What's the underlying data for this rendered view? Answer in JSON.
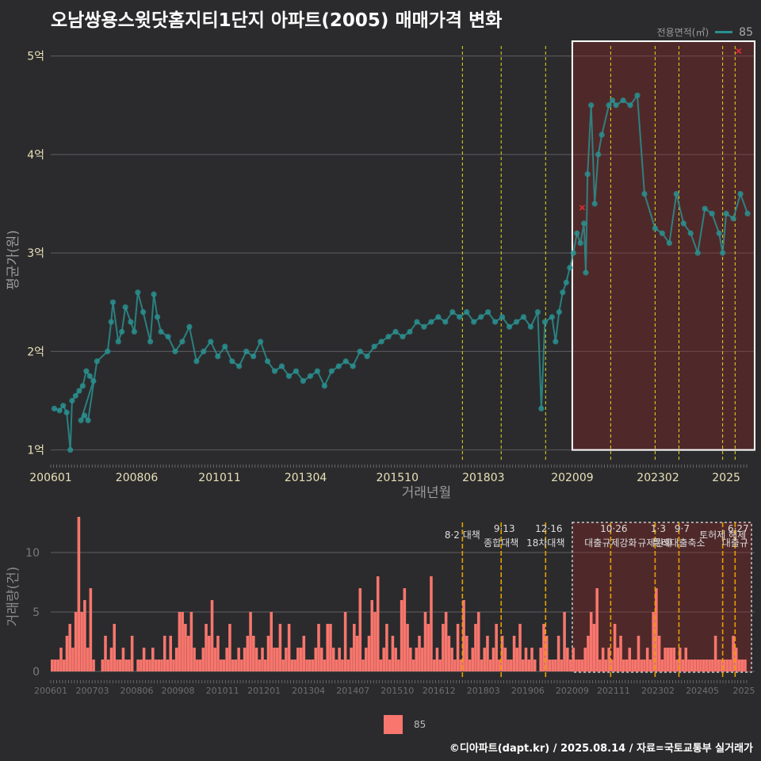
{
  "title": "오남쌍용스윗닷홈지티1단지 아파트(2005) 매매가격 변화",
  "legend_top": {
    "title": "전용면적(㎡)",
    "label": "85",
    "color": "#2a8f8f"
  },
  "legend_bottom": {
    "label": "85",
    "color": "#f8766d"
  },
  "credit": "©디아파트(dapt.kr) / 2025.08.14 / 자료=국토교통부 실거래가",
  "chart_data": [
    {
      "type": "scatter",
      "name": "price",
      "ylabel": "평균가(원)",
      "xlabel": "거래년월",
      "ylim": [
        0.9,
        5.15
      ],
      "xlim": [
        2006.0,
        2025.8
      ],
      "yticks": [
        1,
        2,
        3,
        4,
        5
      ],
      "ytick_labels": [
        "1억",
        "2억",
        "3억",
        "4억",
        "5억"
      ],
      "xticks": [
        2006.0,
        2008.42,
        2010.75,
        2013.17,
        2015.75,
        2018.17,
        2020.67,
        2023.08,
        2025.0
      ],
      "xtick_labels": [
        "200601",
        "200806",
        "201011",
        "201304",
        "201510",
        "201803",
        "202009",
        "202302",
        "2025"
      ],
      "vlines": [
        2017.58,
        2018.67,
        2019.92,
        2021.75,
        2023.0,
        2023.67,
        2024.9,
        2025.25
      ],
      "highlight": {
        "x0": 2020.67,
        "x1": 2025.8,
        "y0": 1.0,
        "y1": 5.15
      },
      "series": [
        {
          "color": "#2a8f8f",
          "points": [
            [
              2006.1,
              1.42
            ],
            [
              2006.25,
              1.4
            ],
            [
              2006.35,
              1.45
            ],
            [
              2006.45,
              1.38
            ],
            [
              2006.55,
              1.0
            ],
            [
              2006.6,
              1.5
            ],
            [
              2006.7,
              1.55
            ],
            [
              2006.8,
              1.6
            ],
            [
              2006.9,
              1.65
            ],
            [
              2007.0,
              1.8
            ],
            [
              2007.1,
              1.75
            ],
            [
              2007.2,
              1.7
            ],
            [
              2006.85,
              1.3
            ],
            [
              2006.95,
              1.35
            ],
            [
              2007.05,
              1.3
            ],
            [
              2007.3,
              1.9
            ],
            [
              2007.6,
              2.0
            ],
            [
              2007.7,
              2.3
            ],
            [
              2007.75,
              2.5
            ],
            [
              2007.9,
              2.1
            ],
            [
              2008.0,
              2.2
            ],
            [
              2008.1,
              2.45
            ],
            [
              2008.25,
              2.3
            ],
            [
              2008.35,
              2.2
            ],
            [
              2008.45,
              2.6
            ],
            [
              2008.6,
              2.4
            ],
            [
              2008.8,
              2.1
            ],
            [
              2008.9,
              2.58
            ],
            [
              2009.0,
              2.35
            ],
            [
              2009.1,
              2.2
            ],
            [
              2009.3,
              2.15
            ],
            [
              2009.5,
              2.0
            ],
            [
              2009.7,
              2.1
            ],
            [
              2009.9,
              2.25
            ],
            [
              2010.1,
              1.9
            ],
            [
              2010.3,
              2.0
            ],
            [
              2010.5,
              2.1
            ],
            [
              2010.7,
              1.95
            ],
            [
              2010.9,
              2.05
            ],
            [
              2011.1,
              1.9
            ],
            [
              2011.3,
              1.85
            ],
            [
              2011.5,
              2.0
            ],
            [
              2011.7,
              1.95
            ],
            [
              2011.9,
              2.1
            ],
            [
              2012.1,
              1.9
            ],
            [
              2012.3,
              1.8
            ],
            [
              2012.5,
              1.85
            ],
            [
              2012.7,
              1.75
            ],
            [
              2012.9,
              1.8
            ],
            [
              2013.1,
              1.7
            ],
            [
              2013.3,
              1.75
            ],
            [
              2013.5,
              1.8
            ],
            [
              2013.7,
              1.65
            ],
            [
              2013.9,
              1.8
            ],
            [
              2014.1,
              1.85
            ],
            [
              2014.3,
              1.9
            ],
            [
              2014.5,
              1.85
            ],
            [
              2014.7,
              2.0
            ],
            [
              2014.9,
              1.95
            ],
            [
              2015.1,
              2.05
            ],
            [
              2015.3,
              2.1
            ],
            [
              2015.5,
              2.15
            ],
            [
              2015.7,
              2.2
            ],
            [
              2015.9,
              2.15
            ],
            [
              2016.1,
              2.2
            ],
            [
              2016.3,
              2.3
            ],
            [
              2016.5,
              2.25
            ],
            [
              2016.7,
              2.3
            ],
            [
              2016.9,
              2.35
            ],
            [
              2017.1,
              2.3
            ],
            [
              2017.3,
              2.4
            ],
            [
              2017.5,
              2.35
            ],
            [
              2017.7,
              2.4
            ],
            [
              2017.9,
              2.3
            ],
            [
              2018.1,
              2.35
            ],
            [
              2018.3,
              2.4
            ],
            [
              2018.5,
              2.3
            ],
            [
              2018.7,
              2.35
            ],
            [
              2018.9,
              2.25
            ],
            [
              2019.1,
              2.3
            ],
            [
              2019.3,
              2.35
            ],
            [
              2019.5,
              2.25
            ],
            [
              2019.7,
              2.4
            ],
            [
              2019.8,
              1.42
            ],
            [
              2019.9,
              2.3
            ],
            [
              2020.1,
              2.35
            ],
            [
              2020.2,
              2.1
            ],
            [
              2020.3,
              2.4
            ],
            [
              2020.4,
              2.6
            ],
            [
              2020.5,
              2.7
            ],
            [
              2020.6,
              2.85
            ],
            [
              2020.7,
              3.0
            ],
            [
              2020.8,
              3.2
            ],
            [
              2020.9,
              3.1
            ],
            [
              2021.0,
              3.3
            ],
            [
              2021.05,
              2.8
            ],
            [
              2021.1,
              3.8
            ],
            [
              2021.2,
              4.5
            ],
            [
              2021.3,
              3.5
            ],
            [
              2021.4,
              4.0
            ],
            [
              2021.5,
              4.2
            ],
            [
              2021.7,
              4.5
            ],
            [
              2021.8,
              4.55
            ],
            [
              2021.9,
              4.5
            ],
            [
              2022.1,
              4.55
            ],
            [
              2022.3,
              4.5
            ],
            [
              2022.5,
              4.6
            ],
            [
              2022.7,
              3.6
            ],
            [
              2023.0,
              3.25
            ],
            [
              2023.2,
              3.2
            ],
            [
              2023.4,
              3.1
            ],
            [
              2023.6,
              3.6
            ],
            [
              2023.8,
              3.3
            ],
            [
              2024.0,
              3.2
            ],
            [
              2024.2,
              3.0
            ],
            [
              2024.4,
              3.45
            ],
            [
              2024.6,
              3.4
            ],
            [
              2024.8,
              3.2
            ],
            [
              2024.9,
              3.0
            ],
            [
              2025.0,
              3.4
            ],
            [
              2025.2,
              3.35
            ],
            [
              2025.4,
              3.6
            ],
            [
              2025.6,
              3.4
            ]
          ]
        }
      ],
      "markers": [
        {
          "x": 2020.95,
          "y": 3.46,
          "symbol": "x",
          "color": "#e03030"
        },
        {
          "x": 2025.35,
          "y": 5.05,
          "symbol": "x",
          "color": "#e03030"
        }
      ]
    },
    {
      "type": "bar",
      "name": "volume",
      "ylabel": "거래량(건)",
      "ylim": [
        0,
        13
      ],
      "yticks": [
        0,
        5,
        10
      ],
      "ytick_labels": [
        "0",
        "5",
        "10"
      ],
      "xtick_labels": [
        "200601",
        "200703",
        "200806",
        "200908",
        "201011",
        "201201",
        "201304",
        "201407",
        "201510",
        "201612",
        "201803",
        "201906",
        "202009",
        "202111",
        "202302",
        "202405",
        "2025"
      ],
      "xtick_positions": [
        2006.0,
        2007.17,
        2008.42,
        2009.58,
        2010.83,
        2012.0,
        2013.25,
        2014.5,
        2015.75,
        2016.92,
        2018.17,
        2019.42,
        2020.67,
        2021.83,
        2023.08,
        2024.33,
        2025.5
      ],
      "vlines": [
        2017.58,
        2018.67,
        2019.92,
        2021.75,
        2023.0,
        2023.67,
        2024.9,
        2025.25
      ],
      "highlight": {
        "x0": 2020.67,
        "x1": 2025.8,
        "y0": 0,
        "y1": 13
      },
      "annotations": [
        {
          "x": 2017.58,
          "lines": [
            "8·2 대책"
          ]
        },
        {
          "x": 2018.67,
          "lines": [
            "9·13",
            "종합대책"
          ]
        },
        {
          "x": 2019.92,
          "lines": [
            "12·16",
            "18차대책"
          ]
        },
        {
          "x": 2021.75,
          "lines": [
            "10·26",
            "대출규제강화"
          ]
        },
        {
          "x": 2023.0,
          "lines": [
            "1·3",
            "규제완화"
          ]
        },
        {
          "x": 2023.67,
          "lines": [
            "9·7",
            "특례대출축소"
          ]
        },
        {
          "x": 2024.9,
          "lines": [
            "토허제 해제"
          ]
        },
        {
          "x": 2025.25,
          "lines": [
            "6·27",
            "대출규"
          ]
        }
      ],
      "color": "#f8766d",
      "start": 2006.0,
      "step": 0.0833,
      "values": [
        1,
        1,
        1,
        2,
        1,
        3,
        4,
        2,
        5,
        13,
        5,
        6,
        2,
        7,
        1,
        0,
        0,
        1,
        3,
        1,
        2,
        4,
        1,
        1,
        2,
        1,
        1,
        3,
        0,
        1,
        1,
        2,
        1,
        1,
        2,
        1,
        1,
        1,
        3,
        1,
        3,
        1,
        2,
        5,
        5,
        4,
        3,
        5,
        2,
        1,
        1,
        2,
        4,
        3,
        6,
        2,
        3,
        1,
        1,
        2,
        4,
        1,
        1,
        2,
        1,
        2,
        3,
        5,
        3,
        2,
        1,
        2,
        1,
        3,
        5,
        2,
        2,
        4,
        1,
        2,
        4,
        1,
        1,
        2,
        2,
        3,
        1,
        1,
        1,
        2,
        4,
        2,
        1,
        4,
        4,
        2,
        1,
        2,
        1,
        5,
        1,
        2,
        4,
        3,
        7,
        1,
        2,
        3,
        6,
        5,
        8,
        1,
        2,
        4,
        1,
        3,
        2,
        1,
        6,
        7,
        4,
        2,
        1,
        2,
        3,
        2,
        5,
        4,
        8,
        1,
        2,
        1,
        4,
        5,
        3,
        2,
        1,
        4,
        1,
        6,
        3,
        1,
        2,
        4,
        5,
        1,
        2,
        3,
        1,
        2,
        4,
        1,
        3,
        2,
        1,
        1,
        3,
        2,
        4,
        1,
        2,
        1,
        2,
        1,
        0,
        2,
        4,
        3,
        1,
        1,
        1,
        3,
        1,
        5,
        2,
        1,
        2,
        1,
        1,
        1,
        2,
        3,
        5,
        4,
        7,
        1,
        2,
        1,
        2,
        1,
        4,
        2,
        3,
        1,
        1,
        2,
        1,
        1,
        3,
        1,
        1,
        2,
        1,
        5,
        7,
        3,
        1,
        2,
        2,
        2,
        2,
        1,
        2,
        1,
        2,
        1,
        1,
        1,
        1,
        1,
        1,
        1,
        1,
        1,
        3,
        1,
        1,
        1,
        1,
        1,
        3,
        2,
        1,
        1,
        1
      ]
    }
  ]
}
